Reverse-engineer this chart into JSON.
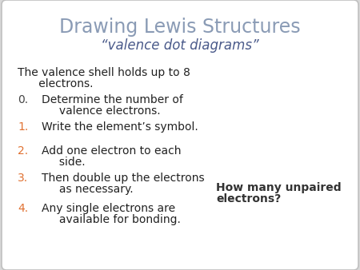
{
  "title": "Drawing Lewis Structures",
  "subtitle": "“valence dot diagrams”",
  "title_color": "#8a9bb5",
  "subtitle_color": "#4a5a8a",
  "background_color": "#d8d8d8",
  "box_color": "#f0f0f0",
  "border_color": "#c0c0c0",
  "intro_line1": "The valence shell holds up to 8",
  "intro_line2": "      electrons.",
  "items": [
    {
      "num": "0.",
      "num_color": "#444444",
      "line1": "Determine the number of",
      "line2": "     valence electrons."
    },
    {
      "num": "1.",
      "num_color": "#e07030",
      "line1": "Write the element’s symbol.",
      "line2": null
    },
    {
      "num": "2.",
      "num_color": "#e07030",
      "line1": "Add one electron to each",
      "line2": "     side."
    },
    {
      "num": "3.",
      "num_color": "#e07030",
      "line1": "Then double up the electrons",
      "line2": "     as necessary."
    },
    {
      "num": "4.",
      "num_color": "#e07030",
      "line1": "Any single electrons are",
      "line2": "     available for bonding."
    }
  ],
  "side_note_line1": "How many unpaired",
  "side_note_line2": "electrons?",
  "side_note_color": "#333333",
  "text_color": "#222222",
  "title_fontsize": 17,
  "subtitle_fontsize": 12,
  "body_fontsize": 10
}
